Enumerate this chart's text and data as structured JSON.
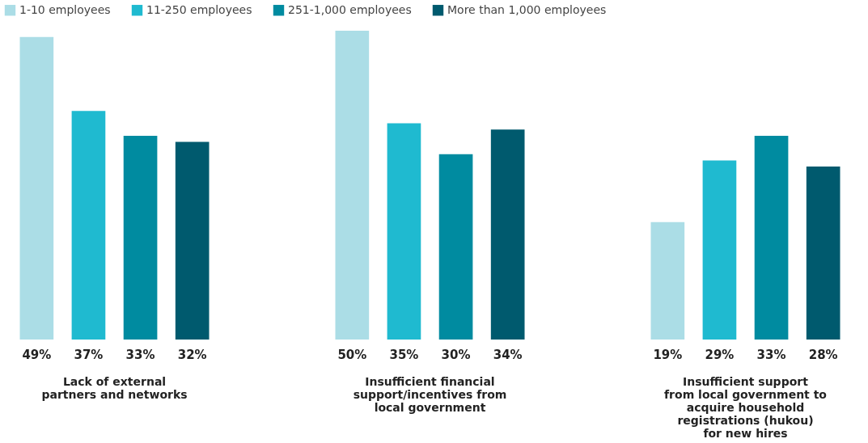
{
  "chart_data": {
    "type": "bar",
    "categories": [
      "Lack of external partners and networks",
      "Insufficient financial support/incentives from local government",
      "Insufficient support from local government to acquire household registrations (hukou) for new hires"
    ],
    "series": [
      {
        "name": "1-10 employees",
        "color": "#abdde6",
        "values": [
          49,
          50,
          19
        ],
        "value_labels": [
          "49%",
          "50%",
          "19%"
        ]
      },
      {
        "name": "11-250 employees",
        "color": "#1fbad0",
        "values": [
          37,
          35,
          29
        ],
        "value_labels": [
          "37%",
          "35%",
          "29%"
        ]
      },
      {
        "name": "251-1,000 employees",
        "color": "#008ba0",
        "values": [
          33,
          30,
          33
        ],
        "value_labels": [
          "33%",
          "30%",
          "33%"
        ]
      },
      {
        "name": "More than 1,000 employees",
        "color": "#005a6e",
        "values": [
          32,
          34,
          28
        ],
        "value_labels": [
          "32%",
          "34%",
          "28%"
        ]
      }
    ],
    "legend": "top"
  }
}
